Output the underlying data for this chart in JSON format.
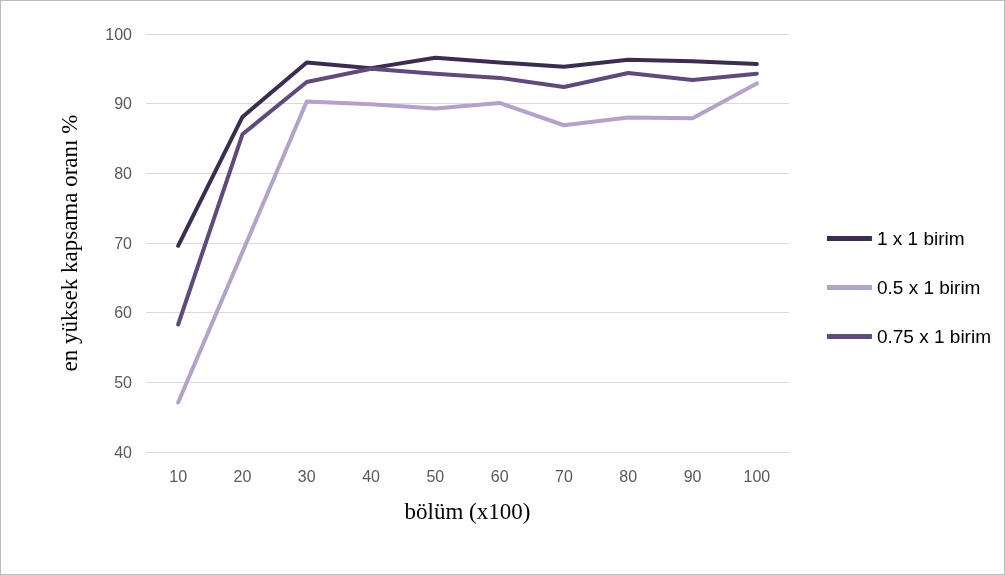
{
  "chart_data": {
    "type": "line",
    "xlabel": "bölüm (x100)",
    "ylabel": "en yüksek kapsama oranı %",
    "categories": [
      "10",
      "20",
      "30",
      "40",
      "50",
      "60",
      "70",
      "80",
      "90",
      "100"
    ],
    "series": [
      {
        "name": "1 x 1 birim",
        "color": "#3b2d4f",
        "values": [
          69.6,
          88.1,
          95.9,
          95.1,
          96.6,
          95.9,
          95.3,
          96.3,
          96.1,
          95.7
        ]
      },
      {
        "name": "0.5 x 1 birim",
        "color": "#b3a2c9",
        "values": [
          47.1,
          68.7,
          90.3,
          89.9,
          89.3,
          90.1,
          86.9,
          88.0,
          87.9,
          92.9
        ]
      },
      {
        "name": "0.75 x 1 birim",
        "color": "#5f4a7b",
        "values": [
          58.3,
          85.6,
          93.1,
          95.0,
          94.3,
          93.7,
          92.4,
          94.4,
          93.4,
          94.3
        ]
      }
    ],
    "ylim": [
      40,
      100
    ],
    "yticks": [
      40,
      50,
      60,
      70,
      80,
      90,
      100
    ],
    "grid": "y",
    "legend": "right",
    "marker": "none",
    "line_style": "solid"
  }
}
